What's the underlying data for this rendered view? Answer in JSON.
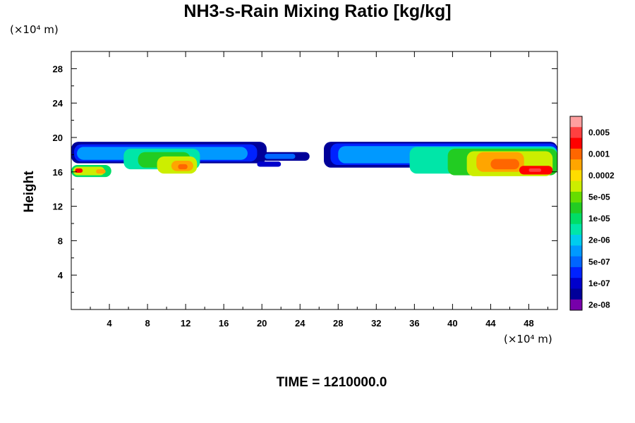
{
  "chart_data": {
    "type": "heatmap",
    "title": "NH3-s-Rain Mixing Ratio [kg/kg]",
    "ylabel": "Height",
    "xlabel": "",
    "x_unit": "(×10⁴ m)",
    "y_unit": "(×10⁴ m)",
    "x_ticks": [
      4,
      8,
      12,
      16,
      20,
      24,
      28,
      32,
      36,
      40,
      44,
      48
    ],
    "y_ticks": [
      4,
      8,
      12,
      16,
      20,
      24,
      28
    ],
    "xlim": [
      0,
      51
    ],
    "ylim": [
      0,
      30
    ],
    "colorbar": {
      "labels": [
        "0.005",
        "0.001",
        "0.0002",
        "5e-05",
        "1e-05",
        "2e-06",
        "5e-07",
        "1e-07",
        "2e-08"
      ],
      "colors": [
        "#ff9f9f",
        "#ff4040",
        "#ff0000",
        "#ff6600",
        "#ffa500",
        "#ffdd00",
        "#ccee00",
        "#66dd00",
        "#22cc22",
        "#00dd66",
        "#00e6a8",
        "#00ccee",
        "#0099ff",
        "#0066ff",
        "#0022ff",
        "#0000cc",
        "#000099",
        "#7700aa"
      ]
    },
    "regions": [
      {
        "x": [
          0,
          20.5
        ],
        "y": [
          17,
          19.5
        ],
        "level": "2e-08 to 1e-05",
        "note": "cloud band"
      },
      {
        "x": [
          9,
          13.5
        ],
        "y": [
          15.8,
          18
        ],
        "level": "up to 5e-05",
        "note": "core"
      },
      {
        "x": [
          0,
          4
        ],
        "y": [
          15.5,
          17
        ],
        "level": "up to 0.001",
        "note": "left edge cells"
      },
      {
        "x": [
          20,
          25
        ],
        "y": [
          17.3,
          18.2
        ],
        "level": "2e-08 to 1e-07",
        "note": "thin tail"
      },
      {
        "x": [
          26.5,
          51
        ],
        "y": [
          15.5,
          19.5
        ],
        "level": "2e-08 to 1e-05",
        "note": "cloud band"
      },
      {
        "x": [
          41.5,
          51
        ],
        "y": [
          15.5,
          19
        ],
        "level": "up to 0.001",
        "note": "core"
      }
    ]
  },
  "footer": {
    "time_text": "TIME = 1210000.0"
  }
}
